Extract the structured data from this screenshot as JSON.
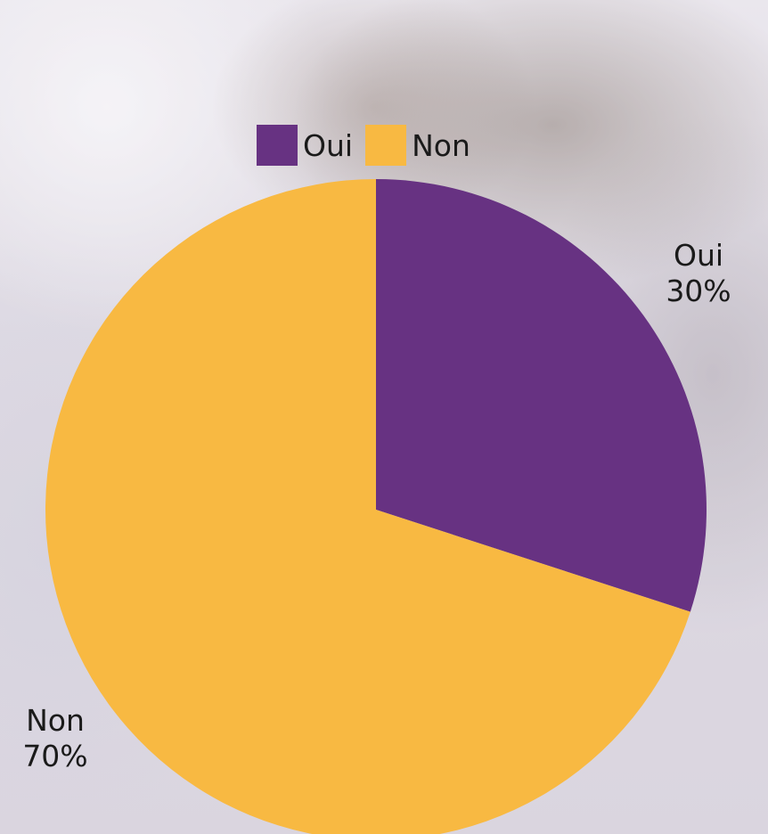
{
  "chart_data": {
    "type": "pie",
    "categories": [
      "Oui",
      "Non"
    ],
    "values": [
      30,
      70
    ],
    "value_labels": [
      "30%",
      "70%"
    ],
    "colors": [
      "#673282",
      "#F8B942"
    ],
    "legend_position": "top",
    "start_angle": "12 o'clock, clockwise"
  }
}
